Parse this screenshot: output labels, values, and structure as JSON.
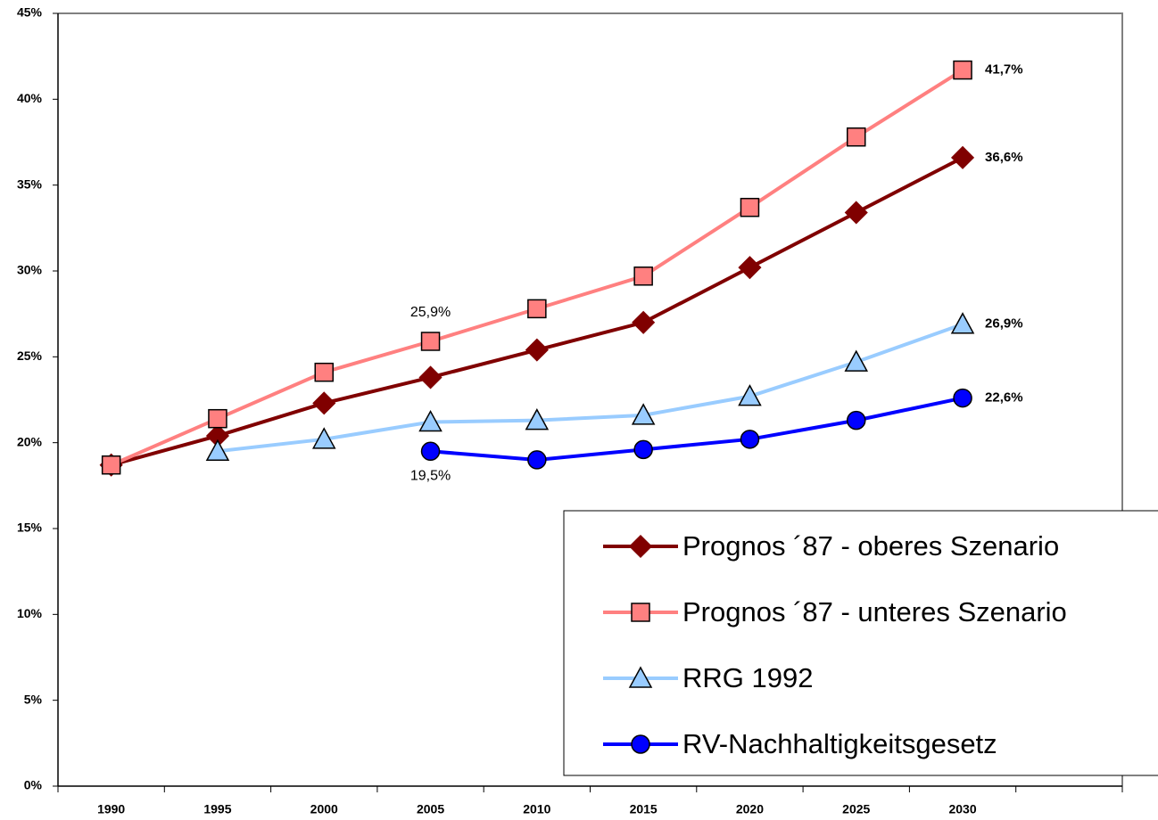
{
  "chart_data": {
    "type": "line",
    "categories": [
      "1990",
      "1995",
      "2000",
      "2005",
      "2010",
      "2015",
      "2020",
      "2025",
      "2030",
      null
    ],
    "series": [
      {
        "name": "Prognos ´87 - oberes Szenario",
        "color": "#800000",
        "marker": "diamond",
        "values": [
          18.7,
          20.4,
          22.3,
          23.8,
          25.4,
          27.0,
          30.2,
          33.4,
          36.6,
          null
        ],
        "value_labels": [
          null,
          null,
          null,
          null,
          null,
          null,
          null,
          null,
          "36,6%",
          null
        ]
      },
      {
        "name": "Prognos ´87 - unteres Szenario",
        "color": "#FF8080",
        "marker": "square",
        "values": [
          18.7,
          21.4,
          24.1,
          25.9,
          27.8,
          29.7,
          33.7,
          37.8,
          41.7,
          null
        ],
        "value_labels": [
          null,
          null,
          null,
          "25,9%",
          null,
          null,
          null,
          null,
          "41,7%",
          null
        ]
      },
      {
        "name": "RRG 1992",
        "color": "#99CCFF",
        "marker": "triangle",
        "values": [
          null,
          19.5,
          20.2,
          21.2,
          21.3,
          21.6,
          22.7,
          24.7,
          26.9,
          null
        ],
        "value_labels": [
          null,
          null,
          null,
          null,
          null,
          null,
          null,
          null,
          "26,9%",
          null
        ]
      },
      {
        "name": "RV-Nachhaltigkeitsgesetz",
        "color": "#0000FF",
        "marker": "circle",
        "values": [
          null,
          null,
          null,
          19.5,
          19.0,
          19.6,
          20.2,
          21.3,
          22.6,
          null
        ],
        "value_labels": [
          null,
          null,
          null,
          "19,5%",
          null,
          null,
          null,
          null,
          "22,6%",
          null
        ]
      }
    ],
    "ylim": [
      0,
      45
    ],
    "yticks": [
      {
        "value": 0,
        "label": "0%"
      },
      {
        "value": 5,
        "label": "5%"
      },
      {
        "value": 10,
        "label": "10%"
      },
      {
        "value": 15,
        "label": "15%"
      },
      {
        "value": 20,
        "label": "20%"
      },
      {
        "value": 25,
        "label": "25%"
      },
      {
        "value": 30,
        "label": "30%"
      },
      {
        "value": 35,
        "label": "35%"
      },
      {
        "value": 40,
        "label": "40%"
      },
      {
        "value": 45,
        "label": "45%"
      }
    ],
    "grid": false,
    "legend": "lower right"
  }
}
